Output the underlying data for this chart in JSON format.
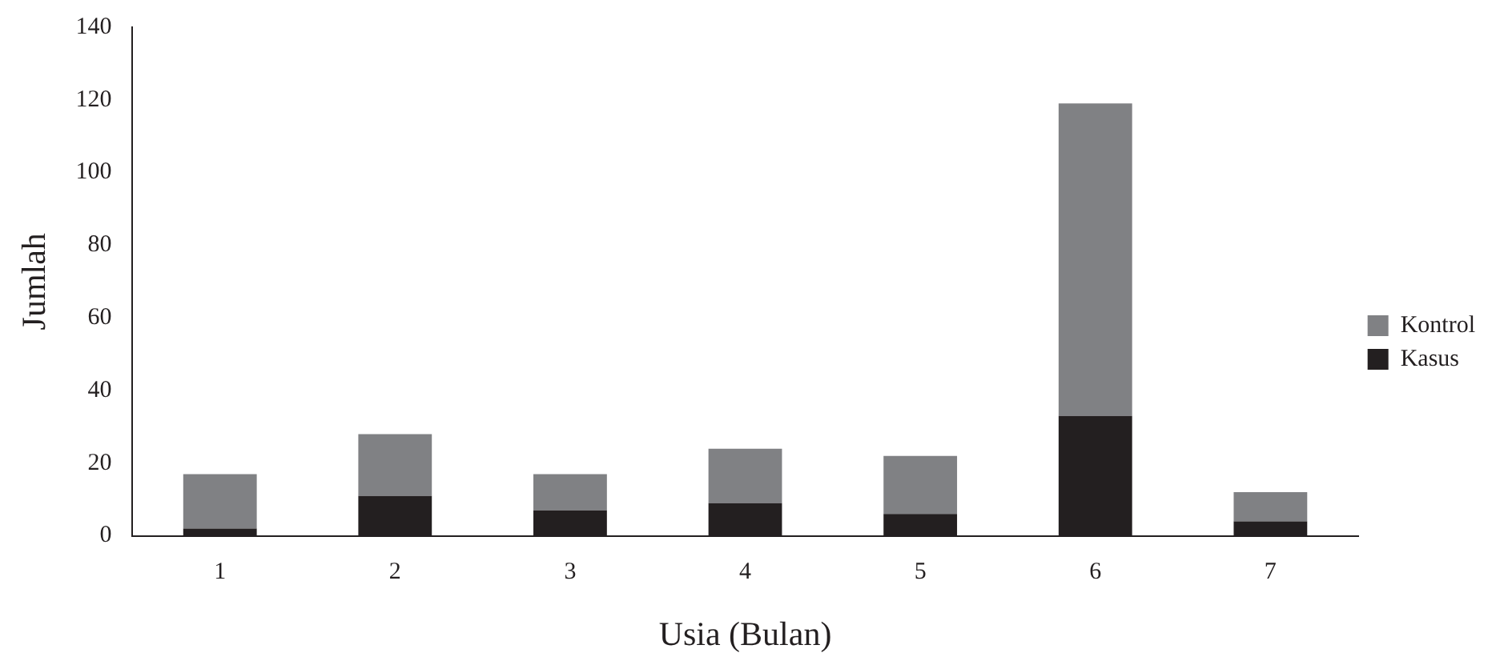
{
  "chart_data": {
    "type": "bar",
    "stacked": true,
    "xlabel": "Usia (Bulan)",
    "ylabel": "Jumlah",
    "categories": [
      "1",
      "2",
      "3",
      "4",
      "5",
      "6",
      "7"
    ],
    "series": [
      {
        "name": "Kasus",
        "color": "#231f20",
        "values": [
          2,
          11,
          7,
          9,
          6,
          33,
          4
        ]
      },
      {
        "name": "Kontrol",
        "color": "#808184",
        "values": [
          15,
          17,
          10,
          15,
          16,
          86,
          8
        ]
      }
    ],
    "ylim": [
      0,
      140
    ],
    "yticks": [
      0,
      20,
      40,
      60,
      80,
      100,
      120,
      140
    ],
    "grid": false,
    "legend": "right"
  }
}
